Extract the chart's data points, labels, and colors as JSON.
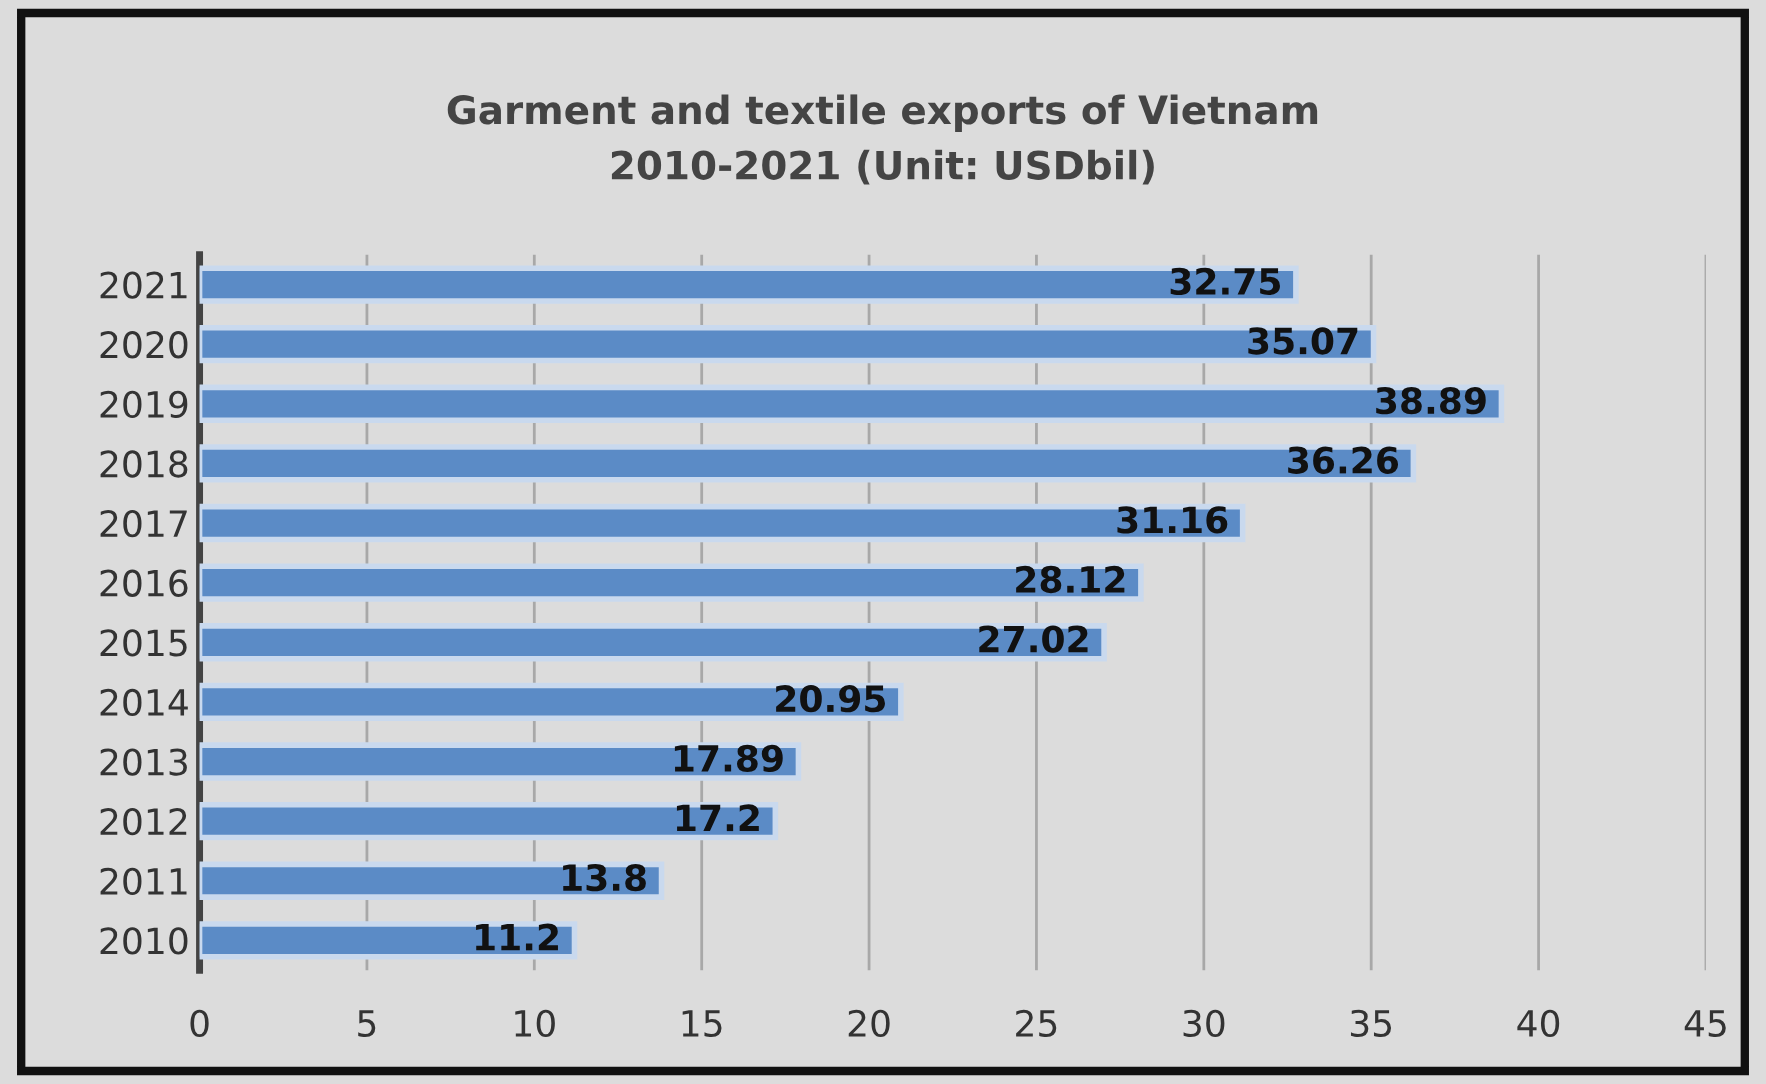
{
  "chart_data": {
    "type": "bar",
    "orientation": "horizontal",
    "title": "Garment and textile exports of Vietnam\n2010-2021 (Unit: USDbil)",
    "categories": [
      "2021",
      "2020",
      "2019",
      "2018",
      "2017",
      "2016",
      "2015",
      "2014",
      "2013",
      "2012",
      "2011",
      "2010"
    ],
    "values": [
      32.75,
      35.07,
      38.89,
      36.26,
      31.16,
      28.12,
      27.02,
      20.95,
      17.89,
      17.2,
      13.8,
      11.2
    ],
    "color": "#5b8bc6",
    "xlim": [
      0,
      45
    ],
    "xticks": [
      0,
      5,
      10,
      15,
      20,
      25,
      30,
      35,
      40,
      45
    ],
    "grid": "x",
    "data_labels": true,
    "legend": false
  }
}
